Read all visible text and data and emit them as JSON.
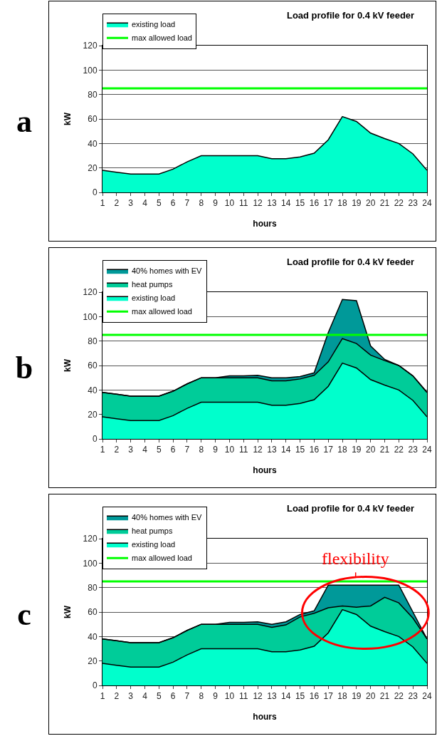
{
  "chart_data": [
    {
      "type": "area",
      "title": "Load profile for 0.4 kV feeder",
      "xlabel": "hours",
      "ylabel": "kW",
      "x": [
        1,
        2,
        3,
        4,
        5,
        6,
        7,
        8,
        9,
        10,
        11,
        12,
        13,
        14,
        15,
        16,
        17,
        18,
        19,
        20,
        21,
        22,
        23,
        24
      ],
      "stacked": true,
      "xlim": [
        1,
        24
      ],
      "xticks": [
        1,
        2,
        3,
        4,
        5,
        6,
        7,
        8,
        9,
        10,
        11,
        12,
        13,
        14,
        15,
        16,
        17,
        18,
        19,
        20,
        21,
        22,
        23,
        24
      ],
      "ylim": [
        0,
        120
      ],
      "yticks": [
        0,
        20,
        40,
        60,
        80,
        100,
        120
      ],
      "grid": "y",
      "legend": "top left",
      "annotations": [
        "a"
      ],
      "series": [
        {
          "name": "existing load",
          "color": "#00ffcc",
          "values": [
            18,
            16.5,
            15,
            15,
            15,
            19,
            25,
            30,
            30,
            30,
            30,
            30,
            27.5,
            27.5,
            29,
            32,
            43,
            62,
            58,
            48.5,
            44,
            40,
            31.5,
            18
          ]
        },
        {
          "name": "max allowed load",
          "type": "line",
          "color": "#00ff00",
          "values": [
            85,
            85,
            85,
            85,
            85,
            85,
            85,
            85,
            85,
            85,
            85,
            85,
            85,
            85,
            85,
            85,
            85,
            85,
            85,
            85,
            85,
            85,
            85,
            85
          ]
        }
      ]
    },
    {
      "type": "area",
      "title": "Load profile for 0.4 kV feeder",
      "xlabel": "hours",
      "ylabel": "kW",
      "x": [
        1,
        2,
        3,
        4,
        5,
        6,
        7,
        8,
        9,
        10,
        11,
        12,
        13,
        14,
        15,
        16,
        17,
        18,
        19,
        20,
        21,
        22,
        23,
        24
      ],
      "stacked": true,
      "xlim": [
        1,
        24
      ],
      "xticks": [
        1,
        2,
        3,
        4,
        5,
        6,
        7,
        8,
        9,
        10,
        11,
        12,
        13,
        14,
        15,
        16,
        17,
        18,
        19,
        20,
        21,
        22,
        23,
        24
      ],
      "ylim": [
        0,
        120
      ],
      "yticks": [
        0,
        20,
        40,
        60,
        80,
        100,
        120
      ],
      "grid": "y",
      "legend": "top left",
      "annotations": [
        "b"
      ],
      "series": [
        {
          "name": "existing load",
          "color": "#00ffcc",
          "values": [
            18,
            16.5,
            15,
            15,
            15,
            19,
            25,
            30,
            30,
            30,
            30,
            30,
            27.5,
            27.5,
            29,
            32,
            43,
            62,
            58,
            48.5,
            44,
            40,
            31.5,
            18
          ]
        },
        {
          "name": "heat pumps",
          "color": "#00cc99",
          "values": [
            20,
            20,
            20,
            20,
            20,
            20,
            20,
            20,
            20,
            20,
            20,
            20,
            20,
            20,
            20,
            20,
            20,
            20,
            20,
            20,
            20,
            20,
            20,
            20
          ]
        },
        {
          "name": "40% homes with EV",
          "color": "#009999",
          "values": [
            0,
            0,
            0,
            0,
            0,
            0,
            0,
            0,
            0,
            1.5,
            1.5,
            2,
            2.5,
            2.5,
            2,
            2,
            24,
            32,
            35,
            7.5,
            1,
            0,
            0,
            0
          ]
        },
        {
          "name": "max allowed load",
          "type": "line",
          "color": "#00ff00",
          "values": [
            85,
            85,
            85,
            85,
            85,
            85,
            85,
            85,
            85,
            85,
            85,
            85,
            85,
            85,
            85,
            85,
            85,
            85,
            85,
            85,
            85,
            85,
            85,
            85
          ]
        }
      ]
    },
    {
      "type": "area",
      "title": "Load profile for 0.4 kV feeder",
      "xlabel": "hours",
      "ylabel": "kW",
      "x": [
        1,
        2,
        3,
        4,
        5,
        6,
        7,
        8,
        9,
        10,
        11,
        12,
        13,
        14,
        15,
        16,
        17,
        18,
        19,
        20,
        21,
        22,
        23,
        24
      ],
      "stacked": true,
      "xlim": [
        1,
        24
      ],
      "xticks": [
        1,
        2,
        3,
        4,
        5,
        6,
        7,
        8,
        9,
        10,
        11,
        12,
        13,
        14,
        15,
        16,
        17,
        18,
        19,
        20,
        21,
        22,
        23,
        24
      ],
      "ylim": [
        0,
        120
      ],
      "yticks": [
        0,
        20,
        40,
        60,
        80,
        100,
        120
      ],
      "grid": "y",
      "legend": "top left",
      "annotations": [
        "c",
        "flexibility"
      ],
      "series": [
        {
          "name": "existing load",
          "color": "#00ffcc",
          "values": [
            18,
            16.5,
            15,
            15,
            15,
            19,
            25,
            30,
            30,
            30,
            30,
            30,
            27.5,
            27.5,
            29,
            32,
            43,
            62,
            58,
            48.5,
            44,
            40,
            31.5,
            18
          ]
        },
        {
          "name": "heat pumps",
          "color": "#00cc99",
          "values": [
            20,
            20,
            20,
            20,
            20,
            20,
            20,
            20,
            20,
            20,
            20,
            20,
            20,
            22,
            27,
            27,
            20.5,
            3,
            6,
            16.5,
            28,
            27.5,
            23.5,
            20
          ]
        },
        {
          "name": "40% homes with EV",
          "color": "#009999",
          "values": [
            0,
            0,
            0,
            0,
            0,
            0,
            0,
            0,
            0,
            1.5,
            1.5,
            2,
            2.5,
            2.5,
            2,
            2,
            18.5,
            17,
            18,
            17,
            10,
            14.5,
            5,
            0
          ]
        },
        {
          "name": "max allowed load",
          "type": "line",
          "color": "#00ff00",
          "values": [
            85,
            85,
            85,
            85,
            85,
            85,
            85,
            85,
            85,
            85,
            85,
            85,
            85,
            85,
            85,
            85,
            85,
            85,
            85,
            85,
            85,
            85,
            85,
            85
          ]
        }
      ]
    }
  ]
}
